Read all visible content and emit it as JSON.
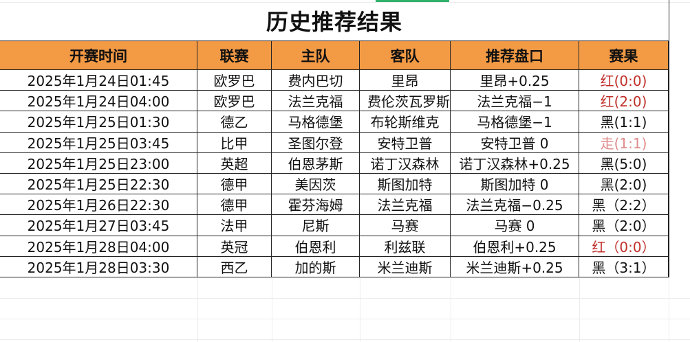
{
  "title": "历史推荐结果",
  "headers": [
    "开赛时间",
    "联赛",
    "主队",
    "客队",
    "推荐盘口",
    "赛果"
  ],
  "colors": {
    "header_bg": "#f39a45",
    "win": "#c0302a",
    "push": "#e08a8a",
    "loss": "#111111"
  },
  "rows": [
    {
      "time": "2025年1月24日01:45",
      "league": "欧罗巴",
      "home": "费内巴切",
      "away": "里昂",
      "tip": "里昂+0.25",
      "result": "红(0:0)",
      "status": "win"
    },
    {
      "time": "2025年1月24日04:00",
      "league": "欧罗巴",
      "home": "法兰克福",
      "away": "费伦茨瓦罗斯",
      "tip": "法兰克福−1",
      "result": "红(2:0)",
      "status": "win"
    },
    {
      "time": "2025年1月25日01:30",
      "league": "德乙",
      "home": "马格德堡",
      "away": "布轮斯维克",
      "tip": "马格德堡−1",
      "result": "黑(1:1)",
      "status": "loss"
    },
    {
      "time": "2025年1月25日03:45",
      "league": "比甲",
      "home": "圣图尔登",
      "away": "安特卫普",
      "tip": "安特卫普 0",
      "result": "走(1:1)",
      "status": "push"
    },
    {
      "time": "2025年1月25日23:00",
      "league": "英超",
      "home": "伯恩茅斯",
      "away": "诺丁汉森林",
      "tip": "诺丁汉森林+0.25",
      "result": "黑(5:0)",
      "status": "loss"
    },
    {
      "time": "2025年1月25日22:30",
      "league": "德甲",
      "home": "美因茨",
      "away": "斯图加特",
      "tip": "斯图加特 0",
      "result": "黑(2:0)",
      "status": "loss"
    },
    {
      "time": "2025年1月26日22:30",
      "league": "德甲",
      "home": "霍芬海姆",
      "away": "法兰克福",
      "tip": "法兰克福−0.25",
      "result": "黑（2:2）",
      "status": "loss"
    },
    {
      "time": "2025年1月27日03:45",
      "league": "法甲",
      "home": "尼斯",
      "away": "马赛",
      "tip": "马赛 0",
      "result": "黑（2:0）",
      "status": "loss"
    },
    {
      "time": "2025年1月28日04:00",
      "league": "英冠",
      "home": "伯恩利",
      "away": "利兹联",
      "tip": "伯恩利+0.25",
      "result": "红（0:0）",
      "status": "win"
    },
    {
      "time": "2025年1月28日03:30",
      "league": "西乙",
      "home": "加的斯",
      "away": "米兰迪斯",
      "tip": "米兰迪斯+0.25",
      "result": "黑（3:1）",
      "status": "loss"
    }
  ]
}
